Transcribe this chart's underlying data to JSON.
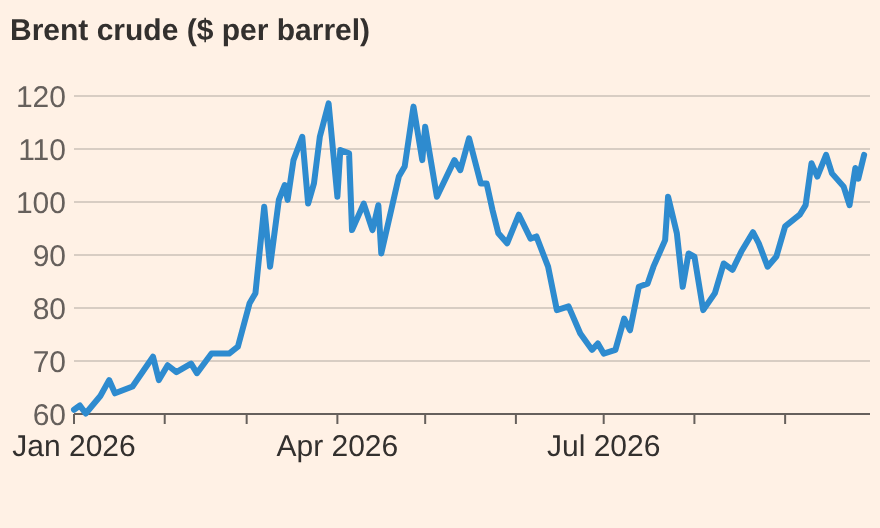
{
  "chart_data": {
    "type": "line",
    "title": "Brent crude ($ per barrel)",
    "x": [
      "2026-01-01",
      "2026-01-03",
      "2026-01-05",
      "2026-01-10",
      "2026-01-13",
      "2026-01-15",
      "2026-01-21",
      "2026-01-28",
      "2026-01-30",
      "2026-02-02",
      "2026-02-05",
      "2026-02-10",
      "2026-02-12",
      "2026-02-17",
      "2026-02-23",
      "2026-02-26",
      "2026-03-02",
      "2026-03-04",
      "2026-03-07",
      "2026-03-09",
      "2026-03-12",
      "2026-03-14",
      "2026-03-15",
      "2026-03-17",
      "2026-03-20",
      "2026-03-22",
      "2026-03-24",
      "2026-03-26",
      "2026-03-29",
      "2026-04-01",
      "2026-04-02",
      "2026-04-05",
      "2026-04-06",
      "2026-04-10",
      "2026-04-13",
      "2026-04-15",
      "2026-04-16",
      "2026-04-22",
      "2026-04-24",
      "2026-04-27",
      "2026-04-30",
      "2026-05-01",
      "2026-05-05",
      "2026-05-11",
      "2026-05-13",
      "2026-05-16",
      "2026-05-20",
      "2026-05-22",
      "2026-05-24",
      "2026-05-26",
      "2026-05-29",
      "2026-06-02",
      "2026-06-06",
      "2026-06-08",
      "2026-06-12",
      "2026-06-15",
      "2026-06-19",
      "2026-06-23",
      "2026-06-27",
      "2026-06-29",
      "2026-07-01",
      "2026-07-05",
      "2026-07-08",
      "2026-07-10",
      "2026-07-13",
      "2026-07-16",
      "2026-07-18",
      "2026-07-22",
      "2026-07-23",
      "2026-07-26",
      "2026-07-28",
      "2026-07-30",
      "2026-08-01",
      "2026-08-04",
      "2026-08-08",
      "2026-08-11",
      "2026-08-14",
      "2026-08-17",
      "2026-08-21",
      "2026-08-23",
      "2026-08-26",
      "2026-08-29",
      "2026-09-01",
      "2026-09-06",
      "2026-09-08",
      "2026-09-10",
      "2026-09-12",
      "2026-09-15",
      "2026-09-17",
      "2026-09-21",
      "2026-09-23",
      "2026-09-25",
      "2026-09-26",
      "2026-09-28"
    ],
    "series": [
      {
        "color": "#2e8bcf",
        "values": [
          60.8,
          61.6,
          60.1,
          63.4,
          66.4,
          63.9,
          65.2,
          70.8,
          66.4,
          69.2,
          67.9,
          69.5,
          67.7,
          71.4,
          71.4,
          72.7,
          80.9,
          82.8,
          99.1,
          87.8,
          100.4,
          103.2,
          100.4,
          107.9,
          112.3,
          99.7,
          103.5,
          112.3,
          118.6,
          101,
          109.8,
          109.2,
          94.7,
          99.7,
          94.7,
          99.4,
          90.3,
          104.8,
          106.7,
          118,
          107.9,
          114.2,
          101,
          107.9,
          106,
          112,
          103.5,
          103.5,
          98.5,
          94.1,
          92.2,
          97.6,
          93.1,
          93.5,
          87.8,
          79.6,
          80.3,
          75.2,
          72.1,
          73.3,
          71.4,
          72.1,
          78,
          75.8,
          84,
          84.6,
          87.8,
          92.8,
          101,
          94.1,
          84,
          90.3,
          89.7,
          79.6,
          82.8,
          88.4,
          87.2,
          90.6,
          94.3,
          92.2,
          87.8,
          89.7,
          95.4,
          97.6,
          99.4,
          107.3,
          104.8,
          108.9,
          105.4,
          102.9,
          99.4,
          106.4,
          104.4,
          108.9
        ]
      }
    ],
    "xlim": [
      "2026-01-01",
      "2026-09-30"
    ],
    "xticks": [
      {
        "value": "2026-01-01",
        "label": "Jan 2026"
      },
      {
        "value": "2026-02-01",
        "label": null
      },
      {
        "value": "2026-03-01",
        "label": null
      },
      {
        "value": "2026-04-01",
        "label": "Apr 2026"
      },
      {
        "value": "2026-05-01",
        "label": null
      },
      {
        "value": "2026-06-01",
        "label": null
      },
      {
        "value": "2026-07-01",
        "label": "Jul 2026"
      },
      {
        "value": "2026-08-01",
        "label": null
      },
      {
        "value": "2026-09-01",
        "label": null
      }
    ],
    "ylim": [
      60,
      120
    ],
    "yticks": [
      60,
      70,
      80,
      90,
      100,
      110,
      120
    ],
    "grid": "y",
    "marker": "none",
    "line_style": "solid"
  }
}
